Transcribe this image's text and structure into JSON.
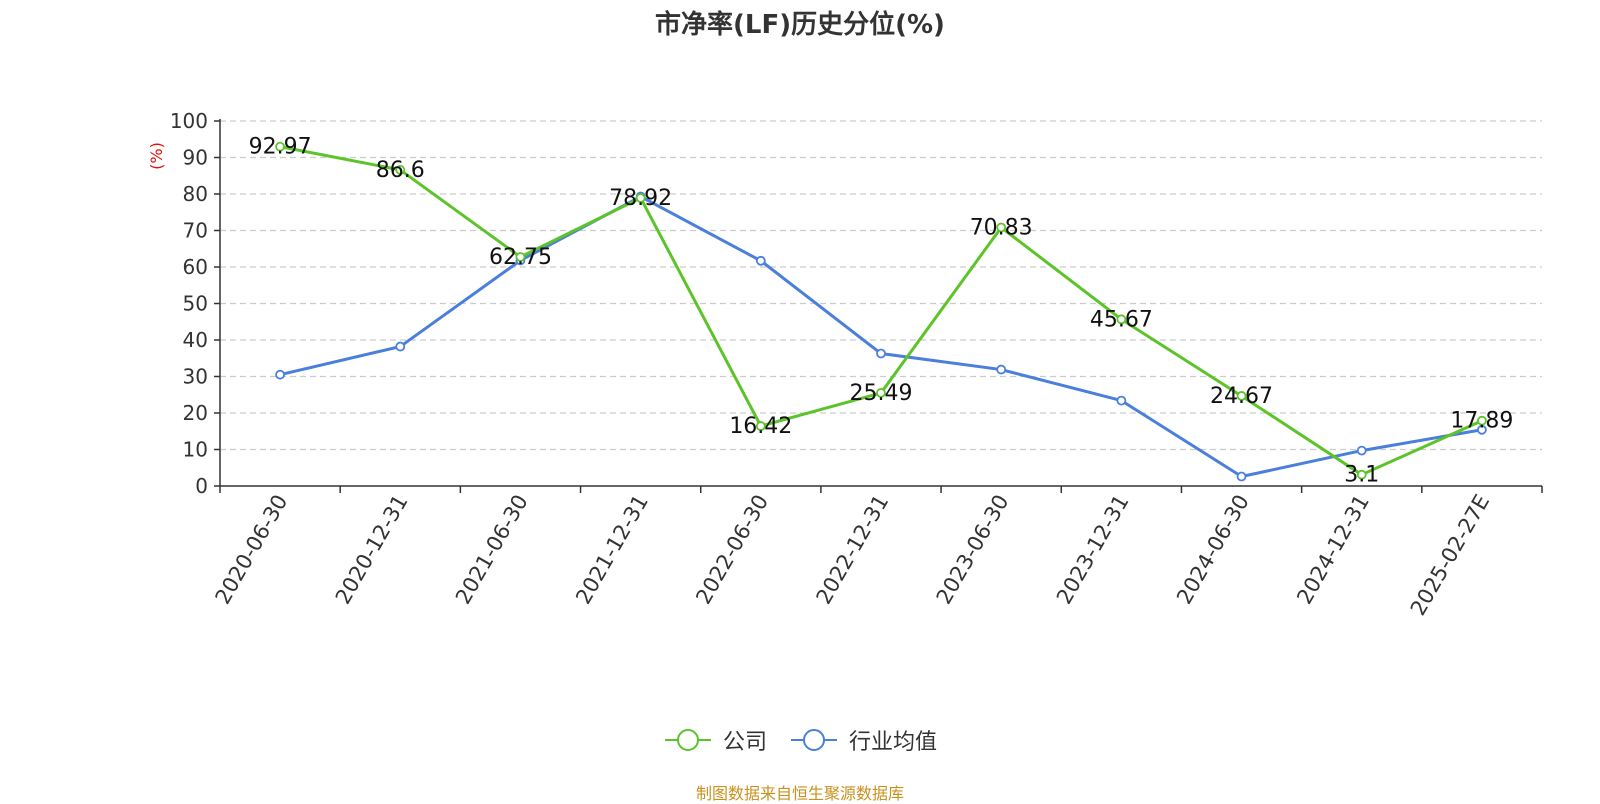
{
  "chart_data": {
    "type": "line",
    "title": "市净率(LF)历史分位(%)",
    "ylabel": "(%)",
    "xlabel": "",
    "ylim": [
      0,
      100
    ],
    "yticks": [
      0,
      10,
      20,
      30,
      40,
      50,
      60,
      70,
      80,
      90,
      100
    ],
    "grid": true,
    "legend_position": "bottom",
    "categories": [
      "2020-06-30",
      "2020-12-31",
      "2021-06-30",
      "2021-12-31",
      "2022-06-30",
      "2022-12-31",
      "2023-06-30",
      "2023-12-31",
      "2024-06-30",
      "2024-12-31",
      "2025-02-27E"
    ],
    "series": [
      {
        "name": "公司",
        "color": "#5cc429",
        "values": [
          92.97,
          86.6,
          62.75,
          78.92,
          16.42,
          25.49,
          70.83,
          45.67,
          24.67,
          3.1,
          17.89
        ],
        "labels": [
          "92.97",
          "86.6",
          "62.75",
          "78.92",
          "16.42",
          "25.49",
          "70.83",
          "45.67",
          "24.67",
          "3.1",
          "17.89"
        ]
      },
      {
        "name": "行业均值",
        "color": "#4a7fdc",
        "values": [
          30.5,
          38.2,
          61.8,
          79.3,
          61.7,
          36.3,
          31.9,
          23.4,
          2.6,
          9.7,
          15.4
        ]
      }
    ]
  },
  "source_note": "制图数据来自恒生聚源数据库",
  "colors": {
    "ylabel": "#e01010",
    "grid": "#cccccc",
    "axis": "#333333",
    "source": "#c8921e"
  }
}
